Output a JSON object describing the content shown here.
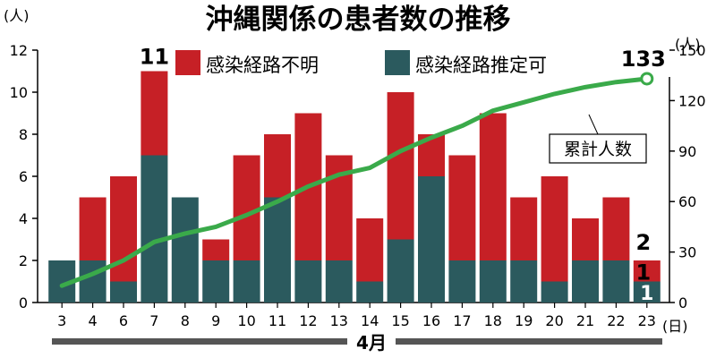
{
  "title": "沖縄関係の患者数の推移",
  "colors": {
    "unknown": "#c62026",
    "estimated": "#2b5a5e",
    "cumulative": "#3aaa4a",
    "axis": "#000000",
    "month_bar": "#555555"
  },
  "chart_data": {
    "type": "bar",
    "stacked": true,
    "categories": [
      "3",
      "4",
      "6",
      "7",
      "8",
      "9",
      "10",
      "11",
      "12",
      "13",
      "14",
      "15",
      "16",
      "17",
      "18",
      "19",
      "20",
      "21",
      "22",
      "23"
    ],
    "series": [
      {
        "name": "感染経路推定可",
        "values": [
          2,
          2,
          1,
          7,
          5,
          2,
          2,
          5,
          2,
          2,
          1,
          3,
          6,
          2,
          2,
          2,
          1,
          2,
          2,
          1
        ]
      },
      {
        "name": "感染経路不明",
        "values": [
          0,
          3,
          5,
          4,
          0,
          1,
          5,
          3,
          7,
          5,
          3,
          7,
          2,
          5,
          7,
          3,
          5,
          2,
          3,
          1
        ]
      }
    ],
    "line": {
      "name": "累計人数",
      "values": [
        10,
        17,
        25,
        36,
        41,
        45,
        52,
        60,
        69,
        76,
        80,
        90,
        98,
        105,
        114,
        119,
        124,
        128,
        131,
        133
      ]
    },
    "ylim_left": [
      0,
      12
    ],
    "yticks_left": [
      "0",
      "2",
      "4",
      "6",
      "8",
      "10",
      "12"
    ],
    "ylim_right": [
      0,
      150
    ],
    "yticks_right": [
      "0",
      "30",
      "60",
      "90",
      "120",
      "150"
    ],
    "ylabel_left_unit": "(人)",
    "ylabel_right_unit": "(人)",
    "xlabel_unit": "(日)",
    "month_label": "4月",
    "legend_position": "top",
    "annotations": {
      "peak_value": "11",
      "last_unknown": "2",
      "last_estimated_top": "1",
      "last_estimated_inner": "1",
      "cumulative_last": "133",
      "cumulative_label": "累計人数"
    }
  }
}
